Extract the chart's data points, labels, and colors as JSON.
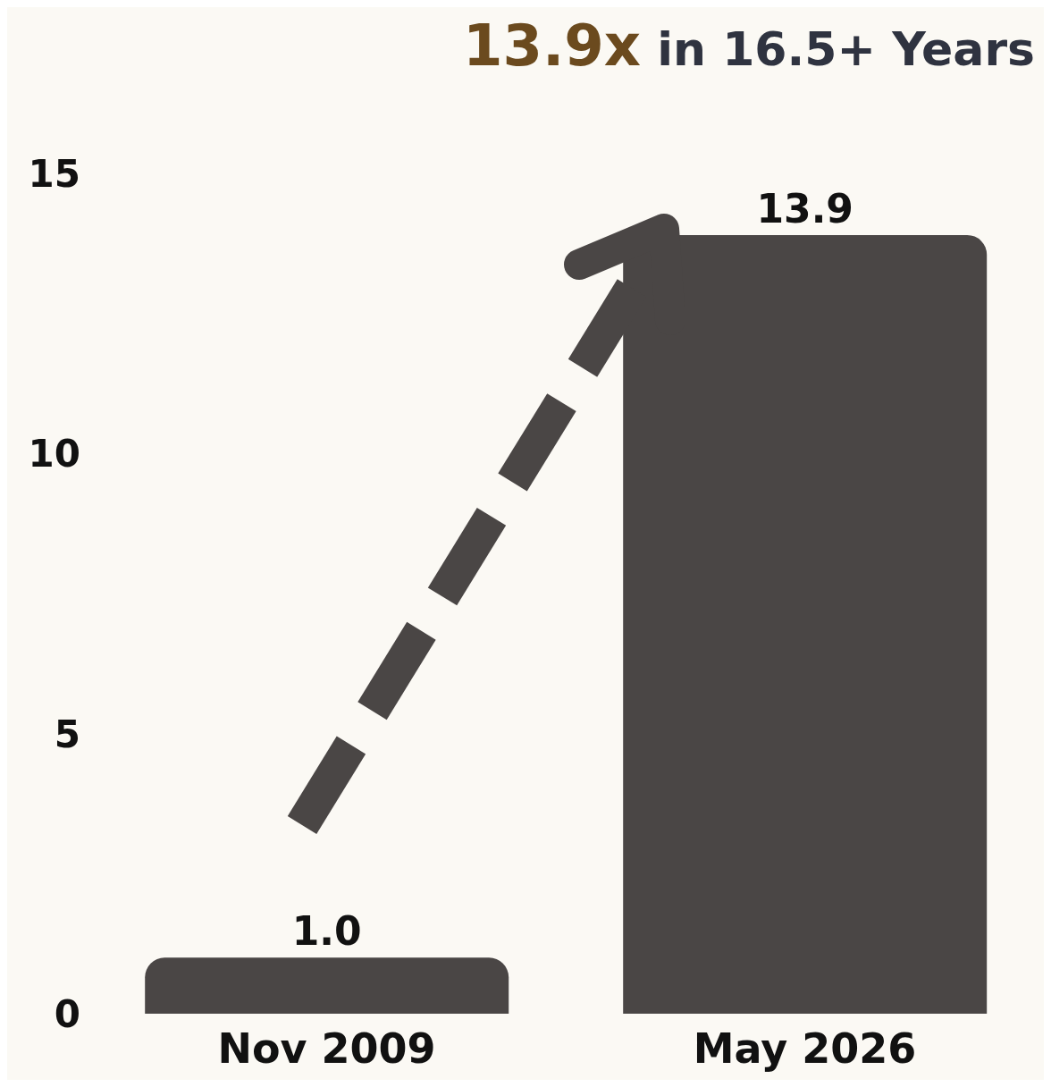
{
  "chart_data": {
    "type": "bar",
    "title": "13.9x in 16.5+ Years",
    "categories": [
      "Nov 2009",
      "May 2026"
    ],
    "values": [
      1.0,
      13.9
    ],
    "color": "#4a4645",
    "ylim": [
      0,
      15
    ],
    "yticks": [
      0,
      5,
      10,
      15
    ],
    "value_labels": [
      "1.0",
      "13.9"
    ]
  }
}
